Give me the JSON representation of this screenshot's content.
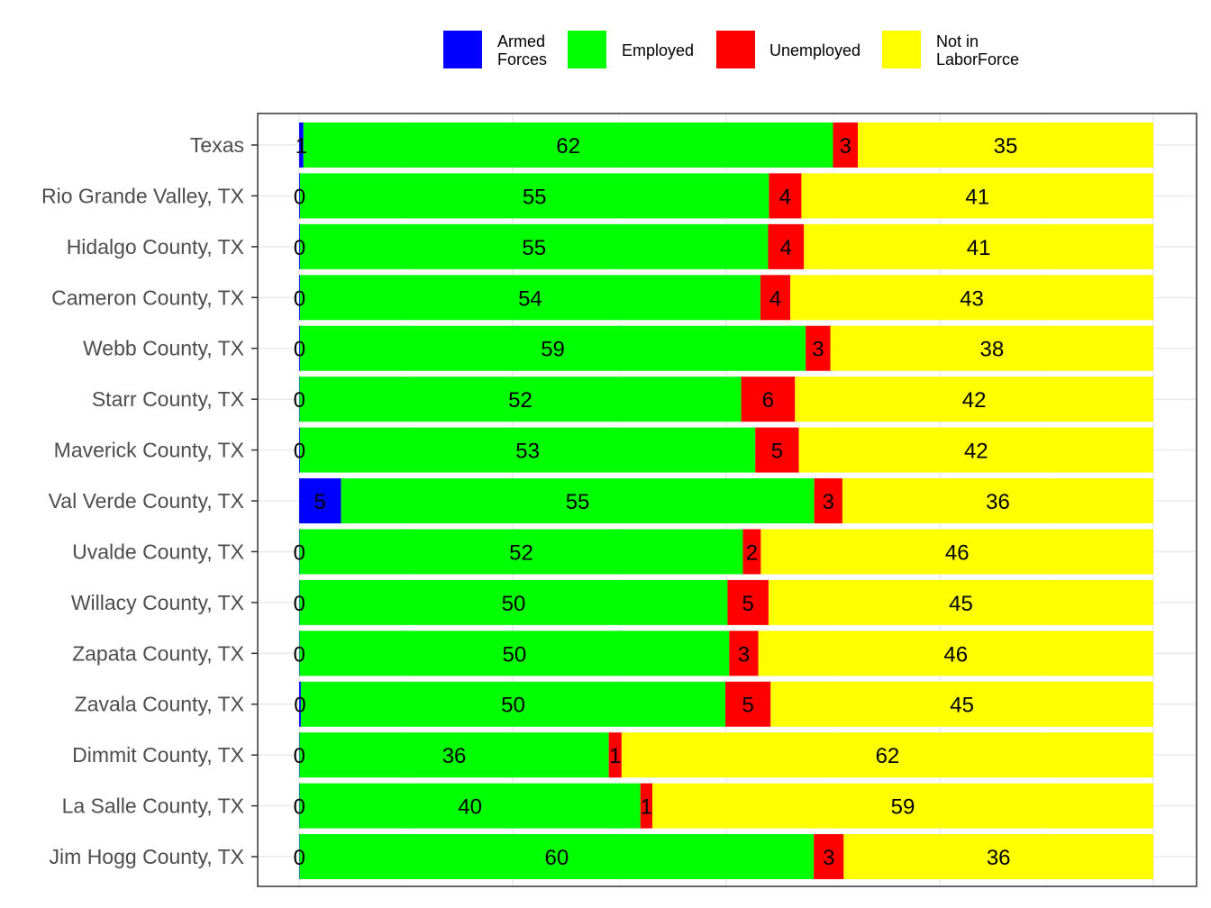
{
  "chart_data": {
    "type": "bar",
    "orientation": "horizontal",
    "stacked": true,
    "title": "",
    "xlabel": "",
    "ylabel": "",
    "xlim": [
      0,
      100
    ],
    "grid": true,
    "legend_position": "top",
    "categories": [
      "Texas",
      "Rio Grande Valley, TX",
      "Hidalgo County, TX",
      "Cameron County, TX",
      "Webb County, TX",
      "Starr County, TX",
      "Maverick County, TX",
      "Val Verde County, TX",
      "Uvalde County, TX",
      "Willacy County, TX",
      "Zapata County, TX",
      "Zavala County, TX",
      "Dimmit County, TX",
      "La Salle County, TX",
      "Jim Hogg County, TX"
    ],
    "series": [
      {
        "name": "Armed Forces",
        "legend_lines": [
          "Armed",
          "Forces"
        ],
        "color": "#0000ff",
        "values": [
          0.5,
          0.1,
          0.1,
          0.1,
          0.1,
          0.05,
          0.1,
          4.9,
          0.05,
          0.05,
          0.05,
          0.2,
          0.05,
          0.05,
          0.05
        ],
        "labels": [
          "1",
          "0",
          "0",
          "0",
          "0",
          "0",
          "0",
          "5",
          "0",
          "0",
          "0",
          "0",
          "0",
          "0",
          "0"
        ]
      },
      {
        "name": "Employed",
        "legend_lines": [
          "Employed"
        ],
        "color": "#00ff00",
        "values": [
          62.0,
          54.9,
          54.8,
          53.9,
          59.2,
          51.7,
          53.3,
          55.4,
          51.9,
          50.1,
          50.3,
          49.7,
          36.2,
          39.9,
          60.2
        ],
        "labels": [
          "62",
          "55",
          "55",
          "54",
          "59",
          "52",
          "53",
          "55",
          "52",
          "50",
          "50",
          "50",
          "36",
          "40",
          "60"
        ]
      },
      {
        "name": "Unemployed",
        "legend_lines": [
          "Unemployed"
        ],
        "color": "#ff0000",
        "values": [
          2.9,
          3.8,
          4.2,
          3.5,
          2.9,
          6.3,
          5.1,
          3.3,
          2.1,
          4.8,
          3.4,
          5.3,
          1.5,
          1.4,
          3.5
        ],
        "labels": [
          "3",
          "4",
          "4",
          "4",
          "3",
          "6",
          "5",
          "3",
          "2",
          "5",
          "3",
          "5",
          "1",
          "1",
          "3"
        ]
      },
      {
        "name": "Not in LaborForce",
        "legend_lines": [
          "Not in",
          "LaborForce"
        ],
        "color": "#ffff00",
        "values": [
          34.6,
          41.2,
          40.9,
          42.5,
          37.8,
          41.95,
          41.5,
          36.4,
          45.95,
          45.05,
          46.25,
          44.8,
          62.25,
          58.65,
          36.25
        ],
        "labels": [
          "35",
          "41",
          "41",
          "43",
          "38",
          "42",
          "42",
          "36",
          "46",
          "45",
          "46",
          "45",
          "62",
          "59",
          "36"
        ]
      }
    ]
  }
}
